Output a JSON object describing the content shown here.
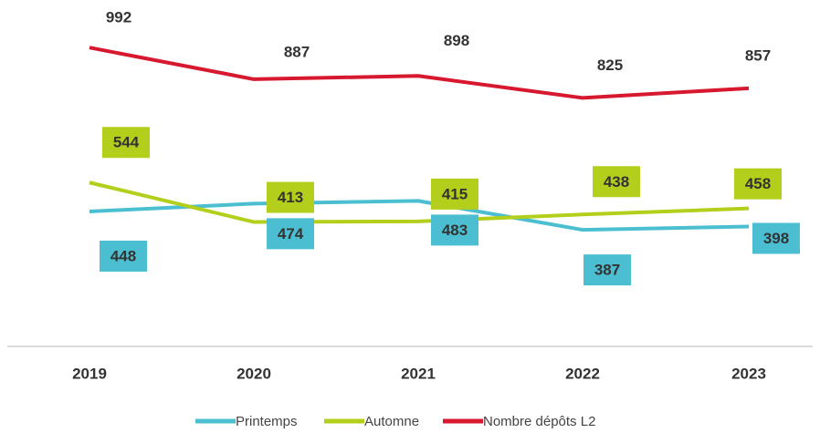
{
  "chart_data": {
    "type": "line",
    "categories": [
      "2019",
      "2020",
      "2021",
      "2022",
      "2023"
    ],
    "series": [
      {
        "name": "Printemps",
        "color": "#4bbfd1",
        "values": [
          448,
          474,
          483,
          387,
          398
        ]
      },
      {
        "name": "Automne",
        "color": "#b4cf1b",
        "values": [
          544,
          413,
          415,
          438,
          458
        ]
      },
      {
        "name": "Nombre dépôts L2",
        "color": "#d7182f",
        "values": [
          992,
          887,
          898,
          825,
          857
        ]
      }
    ],
    "ylim": [
      0,
      1150
    ],
    "legend": "bottom"
  }
}
